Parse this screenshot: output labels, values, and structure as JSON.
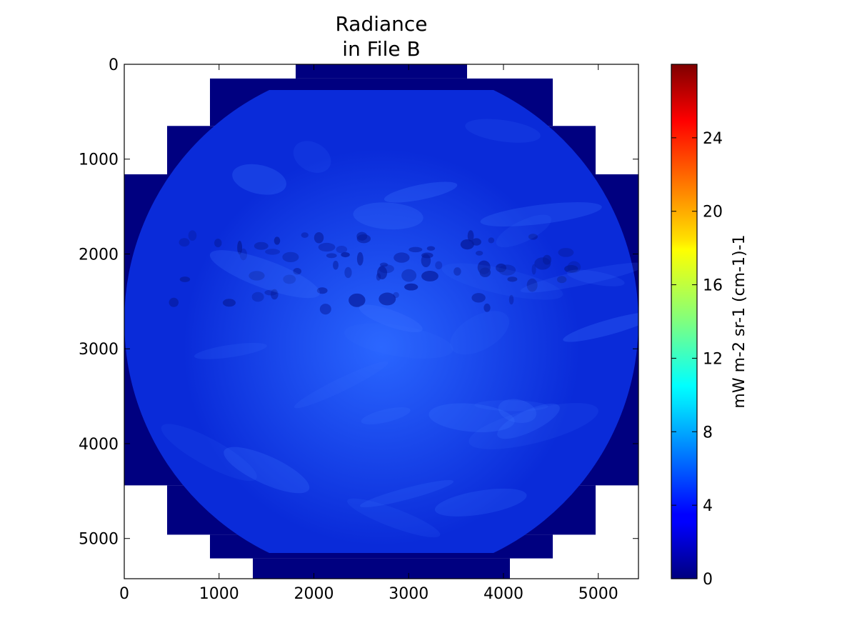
{
  "chart_data": {
    "type": "heatmap",
    "title_lines": [
      "Radiance",
      "in File B"
    ],
    "xlabel": "",
    "ylabel": "",
    "xlim": [
      0,
      5424
    ],
    "ylim": [
      5424,
      0
    ],
    "xticks": [
      0,
      1000,
      2000,
      3000,
      4000,
      5000
    ],
    "yticks": [
      0,
      1000,
      2000,
      3000,
      4000,
      5000
    ],
    "grid": false,
    "colormap": "jet",
    "background_fill_value": 0,
    "disk": {
      "center": [
        2712,
        2712
      ],
      "radius": 2712,
      "typical_value": 3,
      "color_lo": "#0a2bd9",
      "color_hi": "#2a66ff"
    },
    "fill_blocks": [
      {
        "x": [
          1808,
          3616
        ],
        "y": [
          0,
          150
        ]
      },
      {
        "x": [
          904,
          4520
        ],
        "y": [
          150,
          650
        ]
      },
      {
        "x": [
          452,
          4972
        ],
        "y": [
          650,
          1160
        ]
      },
      {
        "x": [
          0,
          5424
        ],
        "y": [
          1160,
          4440
        ]
      },
      {
        "x": [
          452,
          4972
        ],
        "y": [
          4440,
          4960
        ]
      },
      {
        "x": [
          904,
          4520
        ],
        "y": [
          4960,
          5210
        ]
      },
      {
        "x": [
          1356,
          4068
        ],
        "y": [
          5210,
          5424
        ]
      }
    ],
    "colorbar": {
      "label": "mW m-2 sr-1 (cm-1)-1",
      "vmin": 0,
      "vmax": 28,
      "ticks": [
        0,
        4,
        8,
        12,
        16,
        20,
        24
      ]
    }
  }
}
